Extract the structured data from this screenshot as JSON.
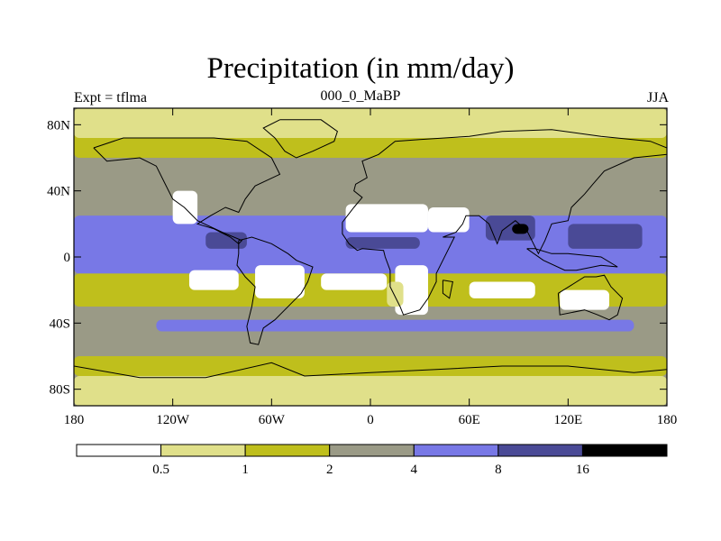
{
  "title": "Precipitation (in mm/day)",
  "left_string": "Expt = tflma",
  "center_string": "000_0_MaBP",
  "right_string": "JJA",
  "y_axis": {
    "ticks": [
      {
        "lat": 80,
        "label": "80N"
      },
      {
        "lat": 40,
        "label": "40N"
      },
      {
        "lat": 0,
        "label": "0"
      },
      {
        "lat": -40,
        "label": "40S"
      },
      {
        "lat": -80,
        "label": "80S"
      }
    ]
  },
  "x_axis": {
    "ticks": [
      {
        "lon": -180,
        "label": "180"
      },
      {
        "lon": -120,
        "label": "120W"
      },
      {
        "lon": -60,
        "label": "60W"
      },
      {
        "lon": 0,
        "label": "0"
      },
      {
        "lon": 60,
        "label": "60E"
      },
      {
        "lon": 120,
        "label": "120E"
      },
      {
        "lon": 180,
        "label": "180"
      }
    ]
  },
  "colors": {
    "bin_0": "#ffffff",
    "bin_1": "#e0e08a",
    "bin_2": "#bfbf1c",
    "bin_3": "#9a9a86",
    "bin_4": "#7878e6",
    "bin_5": "#4a4a96",
    "bin_6": "#000000"
  },
  "colorbar": {
    "levels": [
      "0.5",
      "1",
      "2",
      "4",
      "8",
      "16"
    ]
  },
  "map_regions": [
    {
      "name": "polar-north",
      "color": "bin_2",
      "lon0": -180,
      "lon1": 180,
      "lat0": 60,
      "lat1": 90
    },
    {
      "name": "arctic-dry",
      "color": "bin_1",
      "lon0": -180,
      "lon1": 180,
      "lat0": 72,
      "lat1": 90
    },
    {
      "name": "n-midlat",
      "color": "bin_3",
      "lon0": -180,
      "lon1": 180,
      "lat0": 30,
      "lat1": 60
    },
    {
      "name": "tropics",
      "color": "bin_4",
      "lon0": -180,
      "lon1": 180,
      "lat0": -10,
      "lat1": 25
    },
    {
      "name": "subtropic-s",
      "color": "bin_2",
      "lon0": -180,
      "lon1": 180,
      "lat0": -30,
      "lat1": -10
    },
    {
      "name": "s-midlat",
      "color": "bin_3",
      "lon0": -180,
      "lon1": 180,
      "lat0": -60,
      "lat1": -30
    },
    {
      "name": "storm-track-s",
      "color": "bin_4",
      "lon0": -130,
      "lon1": 160,
      "lat0": -45,
      "lat1": -38
    },
    {
      "name": "s-high",
      "color": "bin_2",
      "lon0": -180,
      "lon1": 180,
      "lat0": -72,
      "lat1": -60
    },
    {
      "name": "antarctic",
      "color": "bin_1",
      "lon0": -180,
      "lon1": 180,
      "lat0": -90,
      "lat1": -72
    },
    {
      "name": "sahara",
      "color": "bin_0",
      "lon0": -15,
      "lon1": 35,
      "lat0": 15,
      "lat1": 32
    },
    {
      "name": "arabia",
      "color": "bin_0",
      "lon0": 35,
      "lon1": 60,
      "lat0": 15,
      "lat1": 30
    },
    {
      "name": "s-africa-dry",
      "color": "bin_0",
      "lon0": 15,
      "lon1": 35,
      "lat0": -35,
      "lat1": -5
    },
    {
      "name": "namib",
      "color": "bin_1",
      "lon0": 10,
      "lon1": 20,
      "lat0": -30,
      "lat1": -15
    },
    {
      "name": "sw-usa",
      "color": "bin_0",
      "lon0": -120,
      "lon1": -105,
      "lat0": 20,
      "lat1": 40
    },
    {
      "name": "brazil-dry",
      "color": "bin_0",
      "lon0": -70,
      "lon1": -40,
      "lat0": -25,
      "lat1": -5
    },
    {
      "name": "australia",
      "color": "bin_0",
      "lon0": 115,
      "lon1": 145,
      "lat0": -32,
      "lat1": -20
    },
    {
      "name": "monsoon-ind",
      "color": "bin_5",
      "lon0": 70,
      "lon1": 100,
      "lat0": 10,
      "lat1": 25
    },
    {
      "name": "bay-max",
      "color": "bin_6",
      "lon0": 86,
      "lon1": 96,
      "lat0": 14,
      "lat1": 20
    },
    {
      "name": "wpac",
      "color": "bin_5",
      "lon0": 120,
      "lon1": 165,
      "lat0": 5,
      "lat1": 20
    },
    {
      "name": "centam",
      "color": "bin_5",
      "lon0": -100,
      "lon1": -75,
      "lat0": 5,
      "lat1": 15
    },
    {
      "name": "sahel",
      "color": "bin_5",
      "lon0": -15,
      "lon1": 30,
      "lat0": 5,
      "lat1": 12
    },
    {
      "name": "atl-south-dry",
      "color": "bin_0",
      "lon0": -30,
      "lon1": 10,
      "lat0": -20,
      "lat1": -10
    },
    {
      "name": "pac-east-dry",
      "color": "bin_0",
      "lon0": -110,
      "lon1": -80,
      "lat0": -20,
      "lat1": -8
    },
    {
      "name": "ind-south-dry",
      "color": "bin_0",
      "lon0": 60,
      "lon1": 100,
      "lat0": -25,
      "lat1": -15
    }
  ],
  "continents": [
    {
      "name": "north-america",
      "points": [
        [
          -168,
          66
        ],
        [
          -150,
          72
        ],
        [
          -120,
          72
        ],
        [
          -95,
          72
        ],
        [
          -75,
          70
        ],
        [
          -60,
          60
        ],
        [
          -55,
          50
        ],
        [
          -70,
          43
        ],
        [
          -76,
          35
        ],
        [
          -80,
          27
        ],
        [
          -88,
          30
        ],
        [
          -97,
          25
        ],
        [
          -105,
          20
        ],
        [
          -95,
          17
        ],
        [
          -85,
          12
        ],
        [
          -80,
          8
        ],
        [
          -78,
          10
        ],
        [
          -90,
          15
        ],
        [
          -105,
          22
        ],
        [
          -113,
          30
        ],
        [
          -120,
          35
        ],
        [
          -125,
          45
        ],
        [
          -130,
          55
        ],
        [
          -140,
          60
        ],
        [
          -160,
          58
        ],
        [
          -168,
          66
        ]
      ]
    },
    {
      "name": "greenland",
      "points": [
        [
          -55,
          83
        ],
        [
          -30,
          83
        ],
        [
          -20,
          76
        ],
        [
          -22,
          70
        ],
        [
          -35,
          64
        ],
        [
          -45,
          60
        ],
        [
          -52,
          64
        ],
        [
          -58,
          72
        ],
        [
          -65,
          78
        ],
        [
          -55,
          83
        ]
      ]
    },
    {
      "name": "south-america",
      "points": [
        [
          -80,
          10
        ],
        [
          -72,
          12
        ],
        [
          -60,
          8
        ],
        [
          -50,
          2
        ],
        [
          -45,
          -2
        ],
        [
          -35,
          -6
        ],
        [
          -38,
          -15
        ],
        [
          -42,
          -22
        ],
        [
          -48,
          -28
        ],
        [
          -58,
          -38
        ],
        [
          -65,
          -43
        ],
        [
          -68,
          -53
        ],
        [
          -73,
          -52
        ],
        [
          -75,
          -42
        ],
        [
          -72,
          -30
        ],
        [
          -70,
          -18
        ],
        [
          -76,
          -12
        ],
        [
          -81,
          -5
        ],
        [
          -80,
          2
        ],
        [
          -80,
          10
        ]
      ]
    },
    {
      "name": "africa-eurasia",
      "points": [
        [
          -17,
          21
        ],
        [
          -10,
          30
        ],
        [
          -5,
          36
        ],
        [
          -10,
          40
        ],
        [
          -9,
          44
        ],
        [
          -2,
          48
        ],
        [
          -5,
          58
        ],
        [
          5,
          62
        ],
        [
          15,
          70
        ],
        [
          30,
          71
        ],
        [
          60,
          73
        ],
        [
          80,
          76
        ],
        [
          110,
          77
        ],
        [
          140,
          73
        ],
        [
          170,
          70
        ],
        [
          180,
          66
        ],
        [
          180,
          62
        ],
        [
          160,
          60
        ],
        [
          142,
          52
        ],
        [
          135,
          44
        ],
        [
          130,
          38
        ],
        [
          122,
          30
        ],
        [
          120,
          22
        ],
        [
          110,
          20
        ],
        [
          106,
          10
        ],
        [
          102,
          2
        ],
        [
          98,
          10
        ],
        [
          95,
          16
        ],
        [
          88,
          22
        ],
        [
          80,
          16
        ],
        [
          77,
          8
        ],
        [
          72,
          20
        ],
        [
          66,
          25
        ],
        [
          58,
          25
        ],
        [
          56,
          20
        ],
        [
          52,
          15
        ],
        [
          44,
          12
        ],
        [
          51,
          12
        ],
        [
          44,
          -2
        ],
        [
          40,
          -10
        ],
        [
          40,
          -15
        ],
        [
          35,
          -25
        ],
        [
          30,
          -32
        ],
        [
          20,
          -35
        ],
        [
          18,
          -30
        ],
        [
          12,
          -18
        ],
        [
          12,
          -8
        ],
        [
          9,
          0
        ],
        [
          8,
          4
        ],
        [
          -5,
          5
        ],
        [
          -8,
          4
        ],
        [
          -13,
          8
        ],
        [
          -17,
          14
        ],
        [
          -17,
          21
        ]
      ]
    },
    {
      "name": "madagascar",
      "points": [
        [
          44,
          -14
        ],
        [
          50,
          -15
        ],
        [
          48,
          -25
        ],
        [
          44,
          -22
        ],
        [
          44,
          -14
        ]
      ]
    },
    {
      "name": "australia",
      "points": [
        [
          114,
          -22
        ],
        [
          122,
          -17
        ],
        [
          130,
          -12
        ],
        [
          137,
          -12
        ],
        [
          142,
          -11
        ],
        [
          146,
          -18
        ],
        [
          153,
          -25
        ],
        [
          150,
          -35
        ],
        [
          145,
          -38
        ],
        [
          138,
          -35
        ],
        [
          130,
          -32
        ],
        [
          115,
          -35
        ],
        [
          114,
          -22
        ]
      ]
    },
    {
      "name": "indonesia",
      "points": [
        [
          95,
          5
        ],
        [
          105,
          -2
        ],
        [
          118,
          -8
        ],
        [
          125,
          -8
        ],
        [
          140,
          -5
        ],
        [
          150,
          -6
        ],
        [
          140,
          0
        ],
        [
          120,
          2
        ],
        [
          110,
          2
        ],
        [
          100,
          5
        ],
        [
          95,
          5
        ]
      ]
    },
    {
      "name": "antarctica",
      "points": [
        [
          -180,
          -66
        ],
        [
          -140,
          -73
        ],
        [
          -100,
          -73
        ],
        [
          -60,
          -64
        ],
        [
          -40,
          -72
        ],
        [
          0,
          -70
        ],
        [
          40,
          -68
        ],
        [
          80,
          -66
        ],
        [
          120,
          -66
        ],
        [
          160,
          -70
        ],
        [
          180,
          -68
        ]
      ]
    }
  ]
}
